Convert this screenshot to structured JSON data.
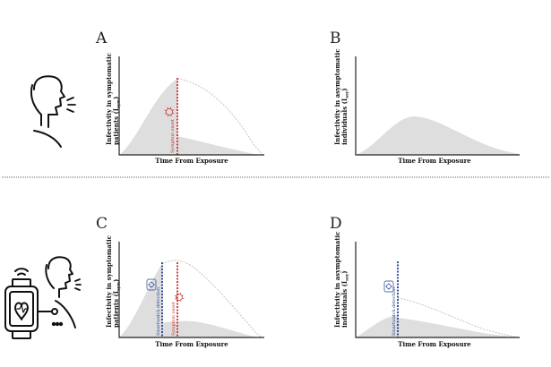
{
  "panels": [
    {
      "letter": "A",
      "ylabel_main": "Infectivity in symptomatic",
      "ylabel_sub_pre": "patients (I",
      "ylabel_subscript": "sym",
      "ylabel_sub_post": ")",
      "xlabel": "Time From Exposure",
      "markers": [
        {
          "text": "Symptom onset",
          "color": "#c0302c"
        }
      ]
    },
    {
      "letter": "B",
      "ylabel_main": "Infectivity in asymptomatic",
      "ylabel_sub_pre": "individuals (I",
      "ylabel_subscript": "asy",
      "ylabel_sub_post": ")",
      "xlabel": "Time From Exposure",
      "markers": []
    },
    {
      "letter": "C",
      "ylabel_main": "Infectivity in symptomatic",
      "ylabel_sub_pre": "patients (I",
      "ylabel_subscript": "sym",
      "ylabel_sub_post": ")",
      "xlabel": "Time From Exposure",
      "markers": [
        {
          "text": "Smartwatch detection",
          "color": "#1f3f8f"
        },
        {
          "text": "Symptom onset",
          "color": "#c0302c"
        }
      ]
    },
    {
      "letter": "D",
      "ylabel_main": "Infectivity in asymptomatic",
      "ylabel_sub_pre": "individuals (I",
      "ylabel_subscript": "asy",
      "ylabel_sub_post": ")",
      "xlabel": "Time From Exposure",
      "markers": [
        {
          "text": "Smartwatch detection",
          "color": "#1f3f8f"
        }
      ]
    }
  ],
  "colors": {
    "fill": "#dedede",
    "axis": "#222222",
    "symptom": "#c0302c",
    "detection": "#1f3f8f",
    "divider": "#9a9a9a"
  },
  "icons": [
    "coughing-person-icon",
    "smartwatch-person-icon",
    "virus-icon",
    "smartwatch-virus-icon"
  ]
}
